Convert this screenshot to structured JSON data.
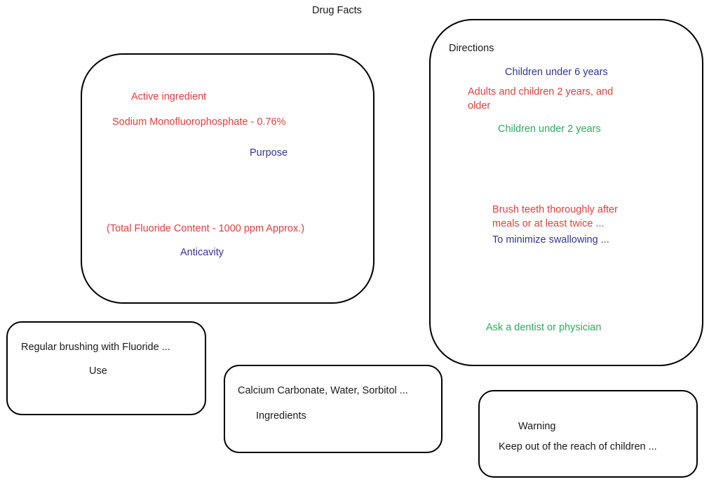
{
  "title": "Drug Facts",
  "colors": {
    "red": "#ee3a3a",
    "blue": "#333399",
    "green": "#2eaa5a",
    "black": "#1a1a1a"
  },
  "active_box": {
    "heading": "Active ingredient",
    "ingredient": "Sodium Monofluorophosphate - 0.76%",
    "purpose_label": "Purpose",
    "fluoride_content": "(Total Fluoride Content - 1000 ppm Approx.)",
    "purpose_value": "Anticavity"
  },
  "directions_box": {
    "heading": "Directions",
    "children_under_6": "Children under 6 years",
    "adults_line1": "Adults and children 2 years, and",
    "adults_line2": "older",
    "children_under_2": "Children under 2 years",
    "brush_line1": "Brush teeth thoroughly after",
    "brush_line2": "meals or at least twice ...",
    "minimize": "To minimize swallowing ...",
    "ask": "Ask a dentist or physician"
  },
  "use_box": {
    "text": "Regular brushing with Fluoride ...",
    "label": "Use"
  },
  "ingredients_box": {
    "text": "Calcium Carbonate, Water, Sorbitol ...",
    "label": "Ingredients"
  },
  "warning_box": {
    "label": "Warning",
    "text": "Keep out of the reach of children ..."
  }
}
